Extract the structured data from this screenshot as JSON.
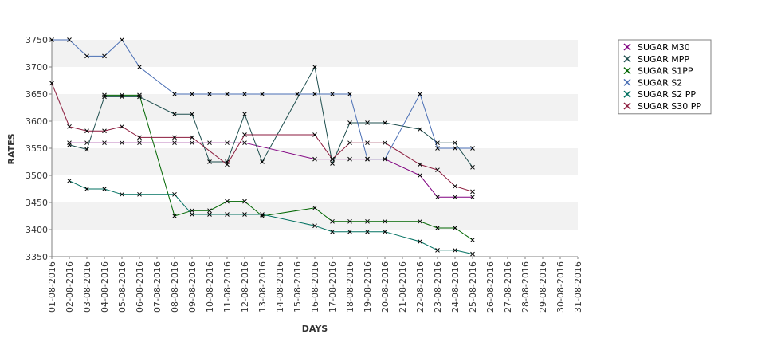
{
  "chart_data": {
    "type": "line",
    "xlabel": "DAYS",
    "ylabel": "RATES",
    "ylim": [
      3350,
      3750
    ],
    "yticks": [
      3350,
      3400,
      3450,
      3500,
      3550,
      3600,
      3650,
      3700,
      3750
    ],
    "grid": "alternating horizontal bands",
    "legend_position": "top-right",
    "categories": [
      "01-08-2016",
      "02-08-2016",
      "03-08-2016",
      "04-08-2016",
      "05-08-2016",
      "06-08-2016",
      "07-08-2016",
      "08-08-2016",
      "09-08-2016",
      "10-08-2016",
      "11-08-2016",
      "12-08-2016",
      "13-08-2016",
      "14-08-2016",
      "15-08-2016",
      "16-08-2016",
      "17-08-2016",
      "18-08-2016",
      "19-08-2016",
      "20-08-2016",
      "21-08-2016",
      "22-08-2016",
      "23-08-2016",
      "24-08-2016",
      "25-08-2016",
      "26-08-2016",
      "27-08-2016",
      "28-08-2016",
      "29-08-2016",
      "30-08-2016",
      "31-08-2016"
    ],
    "series": [
      {
        "name": "SUGAR M30",
        "color": "#800080",
        "points": [
          [
            2,
            3560
          ],
          [
            3,
            3560
          ],
          [
            4,
            3560
          ],
          [
            5,
            3560
          ],
          [
            6,
            3560
          ],
          [
            8,
            3560
          ],
          [
            9,
            3560
          ],
          [
            10,
            3560
          ],
          [
            11,
            3560
          ],
          [
            12,
            3560
          ],
          [
            16,
            3530
          ],
          [
            17,
            3530
          ],
          [
            18,
            3530
          ],
          [
            19,
            3530
          ],
          [
            20,
            3530
          ],
          [
            22,
            3500
          ],
          [
            23,
            3460
          ],
          [
            24,
            3460
          ],
          [
            25,
            3460
          ]
        ]
      },
      {
        "name": "SUGAR MPP",
        "color": "#1f4f4f",
        "points": [
          [
            2,
            3556
          ],
          [
            3,
            3548
          ],
          [
            4,
            3645
          ],
          [
            5,
            3645
          ],
          [
            6,
            3645
          ],
          [
            8,
            3613
          ],
          [
            9,
            3613
          ],
          [
            10,
            3525
          ],
          [
            11,
            3525
          ],
          [
            12,
            3613
          ],
          [
            13,
            3525
          ],
          [
            16,
            3700
          ],
          [
            17,
            3522
          ],
          [
            18,
            3597
          ],
          [
            19,
            3597
          ],
          [
            20,
            3597
          ],
          [
            22,
            3585
          ],
          [
            23,
            3560
          ],
          [
            24,
            3560
          ],
          [
            25,
            3515
          ]
        ]
      },
      {
        "name": "SUGAR S1PP",
        "color": "#006600",
        "points": [
          [
            4,
            3648
          ],
          [
            5,
            3648
          ],
          [
            6,
            3648
          ],
          [
            8,
            3425
          ],
          [
            9,
            3435
          ],
          [
            10,
            3435
          ],
          [
            11,
            3452
          ],
          [
            12,
            3452
          ],
          [
            13,
            3425
          ],
          [
            16,
            3440
          ],
          [
            17,
            3415
          ],
          [
            18,
            3415
          ],
          [
            19,
            3415
          ],
          [
            20,
            3415
          ],
          [
            22,
            3415
          ],
          [
            23,
            3403
          ],
          [
            24,
            3403
          ],
          [
            25,
            3381
          ]
        ]
      },
      {
        "name": "SUGAR S2",
        "color": "#4a6fb5",
        "points": [
          [
            1,
            3750
          ],
          [
            2,
            3750
          ],
          [
            3,
            3720
          ],
          [
            4,
            3720
          ],
          [
            5,
            3750
          ],
          [
            6,
            3700
          ],
          [
            8,
            3650
          ],
          [
            9,
            3650
          ],
          [
            10,
            3650
          ],
          [
            11,
            3650
          ],
          [
            12,
            3650
          ],
          [
            13,
            3650
          ],
          [
            15,
            3650
          ],
          [
            16,
            3650
          ],
          [
            17,
            3650
          ],
          [
            18,
            3650
          ],
          [
            19,
            3530
          ],
          [
            20,
            3530
          ],
          [
            22,
            3650
          ],
          [
            23,
            3550
          ],
          [
            24,
            3550
          ],
          [
            25,
            3550
          ]
        ]
      },
      {
        "name": "SUGAR S2 PP",
        "color": "#007060",
        "points": [
          [
            2,
            3490
          ],
          [
            3,
            3475
          ],
          [
            4,
            3475
          ],
          [
            5,
            3465
          ],
          [
            6,
            3465
          ],
          [
            8,
            3465
          ],
          [
            9,
            3428
          ],
          [
            10,
            3428
          ],
          [
            11,
            3428
          ],
          [
            12,
            3428
          ],
          [
            13,
            3428
          ],
          [
            16,
            3407
          ],
          [
            17,
            3396
          ],
          [
            18,
            3396
          ],
          [
            19,
            3396
          ],
          [
            20,
            3396
          ],
          [
            22,
            3378
          ],
          [
            23,
            3362
          ],
          [
            24,
            3362
          ],
          [
            25,
            3355
          ]
        ]
      },
      {
        "name": "SUGAR S30 PP",
        "color": "#8b1a3c",
        "points": [
          [
            1,
            3670
          ],
          [
            2,
            3590
          ],
          [
            3,
            3582
          ],
          [
            4,
            3582
          ],
          [
            5,
            3590
          ],
          [
            6,
            3570
          ],
          [
            8,
            3570
          ],
          [
            9,
            3570
          ],
          [
            11,
            3520
          ],
          [
            12,
            3575
          ],
          [
            16,
            3575
          ],
          [
            17,
            3530
          ],
          [
            18,
            3560
          ],
          [
            19,
            3560
          ],
          [
            20,
            3560
          ],
          [
            22,
            3520
          ],
          [
            23,
            3510
          ],
          [
            24,
            3480
          ],
          [
            25,
            3470
          ]
        ]
      }
    ]
  }
}
